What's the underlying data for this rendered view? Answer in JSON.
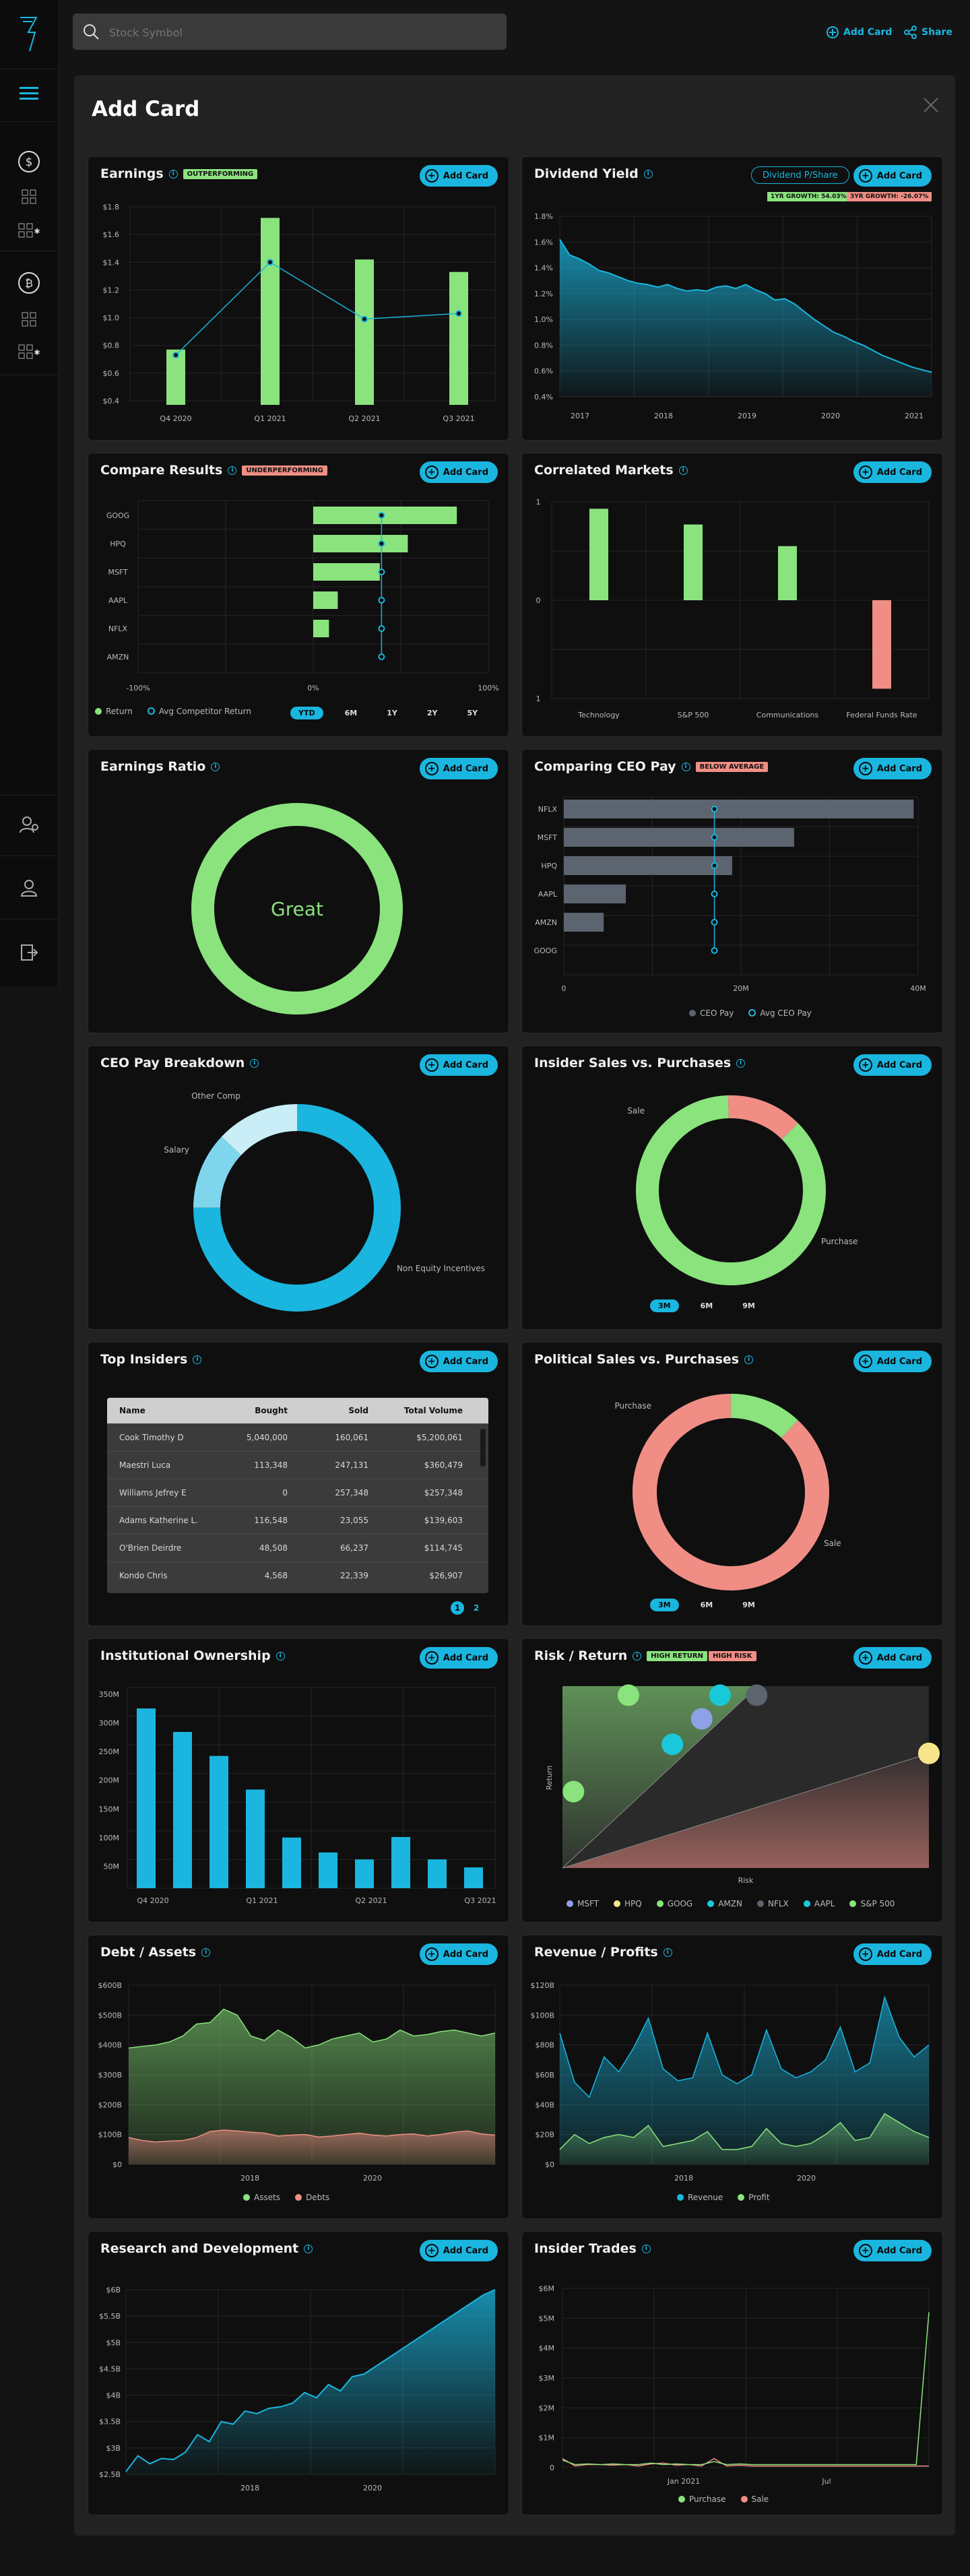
{
  "app": {
    "name": "Stock dashboard"
  },
  "search": {
    "placeholder": "Stock Symbol"
  },
  "topbar": {
    "add_card": "Add Card",
    "share": "Share"
  },
  "panel": {
    "title": "Add Card"
  },
  "add_label": "Add Card",
  "colors": {
    "accent": "#1ab6df",
    "green": "#8ae37d",
    "red": "#f08e85",
    "slate": "#5c6470",
    "lightblue": "#7fd6ec"
  },
  "cards": {
    "earnings": {
      "title": "Earnings",
      "badge": "OUTPERFORMING"
    },
    "dividend": {
      "title": "Dividend Yield",
      "toggle": "Dividend P/Share",
      "g1": "1YR GROWTH: 54.03%",
      "g2": "3YR GROWTH: -26.07%"
    },
    "compare": {
      "title": "Compare Results",
      "badge": "UNDERPERFORMING",
      "legend": [
        "Return",
        "Avg Competitor Return"
      ],
      "tabs": [
        "YTD",
        "6M",
        "1Y",
        "2Y",
        "5Y"
      ]
    },
    "correlated": {
      "title": "Correlated Markets"
    },
    "ratio": {
      "title": "Earnings Ratio",
      "center": "Great"
    },
    "ceopay": {
      "title": "Comparing CEO Pay",
      "badge": "BELOW AVERAGE",
      "legend": [
        "CEO Pay",
        "Avg CEO Pay"
      ]
    },
    "breakdown": {
      "title": "CEO Pay Breakdown"
    },
    "insider_sp": {
      "title": "Insider Sales vs. Purchases",
      "tabs": [
        "3M",
        "6M",
        "9M"
      ]
    },
    "top_insiders": {
      "title": "Top Insiders",
      "headers": [
        "Name",
        "Bought",
        "Sold",
        "Total Volume"
      ],
      "rows": [
        [
          "Cook Timothy D",
          "5,040,000",
          "160,061",
          "$5,200,061"
        ],
        [
          "Maestri Luca",
          "113,348",
          "247,131",
          "$360,479"
        ],
        [
          "Williams Jefrey E",
          "0",
          "257,348",
          "$257,348"
        ],
        [
          "Adams Katherine L.",
          "116,548",
          "23,055",
          "$139,603"
        ],
        [
          "O'Brien Deirdre",
          "48,508",
          "66,237",
          "$114,745"
        ],
        [
          "Kondo Chris",
          "4,568",
          "22,339",
          "$26,907"
        ]
      ],
      "pages": [
        "1",
        "2"
      ]
    },
    "political": {
      "title": "Political Sales vs. Purchases",
      "tabs": [
        "3M",
        "6M",
        "9M"
      ]
    },
    "institutional": {
      "title": "Institutional Ownership"
    },
    "risk": {
      "title": "Risk / Return",
      "badge1": "HIGH RETURN",
      "badge2": "HIGH RISK",
      "xlabel": "Risk",
      "ylabel": "Return"
    },
    "debt": {
      "title": "Debt / Assets"
    },
    "revenue": {
      "title": "Revenue / Profits"
    },
    "rnd": {
      "title": "Research and Development"
    },
    "trades": {
      "title": "Insider Trades"
    }
  },
  "chart_data": [
    {
      "id": "earnings",
      "type": "bar",
      "categories": [
        "Q4 2020",
        "Q1 2021",
        "Q2 2021",
        "Q3 2021"
      ],
      "values": [
        0.77,
        1.72,
        1.42,
        1.33
      ],
      "line": [
        0.73,
        1.4,
        0.99,
        1.03
      ],
      "yticks": [
        "$1.8",
        "$1.6",
        "$1.4",
        "$1.2",
        "$1.0",
        "$0.8",
        "$0.6",
        "$0.4"
      ],
      "ylim": [
        0.4,
        1.8
      ]
    },
    {
      "id": "dividend",
      "type": "area",
      "xticks": [
        "2017",
        "2018",
        "2019",
        "2020",
        "2021"
      ],
      "yticks": [
        "1.8%",
        "1.6%",
        "1.4%",
        "1.2%",
        "1.0%",
        "0.8%",
        "0.6%",
        "0.4%"
      ],
      "ylim": [
        0.4,
        1.8
      ],
      "values": [
        1.62,
        1.5,
        1.47,
        1.43,
        1.38,
        1.36,
        1.33,
        1.3,
        1.28,
        1.27,
        1.25,
        1.27,
        1.24,
        1.22,
        1.23,
        1.22,
        1.25,
        1.26,
        1.24,
        1.27,
        1.23,
        1.2,
        1.15,
        1.16,
        1.12,
        1.06,
        1.0,
        0.95,
        0.9,
        0.87,
        0.83,
        0.8,
        0.76,
        0.72,
        0.69,
        0.66,
        0.63,
        0.61,
        0.59
      ]
    },
    {
      "id": "compare",
      "type": "bar",
      "categories": [
        "GOOG",
        "HPQ",
        "MSFT",
        "AAPL",
        "NFLX",
        "AMZN"
      ],
      "values": [
        82,
        54,
        38,
        14,
        9,
        0
      ],
      "avg": [
        39,
        39,
        39,
        39,
        39,
        39
      ],
      "xticks": [
        "-100%",
        "0%",
        "100%"
      ],
      "xlim": [
        -100,
        100
      ]
    },
    {
      "id": "correlated",
      "type": "bar",
      "categories": [
        "Technology",
        "S&P 500",
        "Communications",
        "Federal Funds Rate"
      ],
      "values": [
        0.93,
        0.77,
        0.55,
        -0.9
      ],
      "yticks": [
        "1",
        "0",
        "1"
      ],
      "ylim": [
        -1,
        1
      ]
    },
    {
      "id": "ratio",
      "type": "pie",
      "values": [
        100
      ],
      "label": "Great"
    },
    {
      "id": "ceopay",
      "type": "bar",
      "categories": [
        "NFLX",
        "MSFT",
        "HPQ",
        "AAPL",
        "AMZN",
        "GOOG"
      ],
      "values": [
        39.5,
        26,
        19,
        7,
        4.5,
        0
      ],
      "avg": [
        17,
        17,
        17,
        17,
        17,
        17
      ],
      "xticks": [
        "0",
        "20M",
        "40M"
      ],
      "xlim": [
        0,
        40
      ]
    },
    {
      "id": "breakdown",
      "type": "pie",
      "labels": [
        "Non Equity Incentives",
        "Salary",
        "Other Comp"
      ],
      "values": [
        75,
        12,
        13
      ]
    },
    {
      "id": "insider_sp",
      "type": "pie",
      "labels": [
        "Purchase",
        "Sale"
      ],
      "values": [
        87,
        13
      ]
    },
    {
      "id": "political",
      "type": "pie",
      "labels": [
        "Sale",
        "Purchase"
      ],
      "values": [
        88,
        12
      ]
    },
    {
      "id": "institutional",
      "type": "bar",
      "categories": [
        "Q4 2020",
        "",
        "",
        "Q1 2021",
        "",
        "",
        "Q2 2021",
        "",
        "",
        "Q3 2021"
      ],
      "values": [
        337,
        293,
        248,
        185,
        95,
        67,
        54,
        96,
        54,
        39
      ],
      "yticks": [
        "350M",
        "300M",
        "250M",
        "200M",
        "150M",
        "100M",
        "50M"
      ],
      "ylim": [
        0,
        350
      ]
    },
    {
      "id": "risk",
      "type": "scatter",
      "series": [
        {
          "name": "MSFT",
          "color": "#8ea0e6",
          "x": 0.38,
          "y": 0.82
        },
        {
          "name": "HPQ",
          "color": "#f6e58a",
          "x": 1.0,
          "y": 0.63
        },
        {
          "name": "GOOG",
          "color": "#8ae37d",
          "x": 0.18,
          "y": 0.95
        },
        {
          "name": "AMZN",
          "color": "#1ac9d9",
          "x": 0.3,
          "y": 0.68
        },
        {
          "name": "NFLX",
          "color": "#5c6470",
          "x": 0.53,
          "y": 0.95
        },
        {
          "name": "AAPL",
          "color": "#1ac9d9",
          "x": 0.43,
          "y": 0.95
        },
        {
          "name": "S&P 500",
          "color": "#8ae37d",
          "x": 0.03,
          "y": 0.42
        }
      ]
    },
    {
      "id": "debt",
      "type": "area",
      "xticks": [
        "2018",
        "2020"
      ],
      "yticks": [
        "$600B",
        "$500B",
        "$400B",
        "$300B",
        "$200B",
        "$100B",
        "$0"
      ],
      "ylim": [
        0,
        600
      ],
      "series": [
        {
          "name": "Assets",
          "values": [
            390,
            395,
            400,
            410,
            430,
            470,
            475,
            520,
            500,
            430,
            415,
            450,
            425,
            390,
            400,
            420,
            430,
            440,
            410,
            420,
            450,
            430,
            435,
            445,
            450,
            440,
            430,
            440
          ]
        },
        {
          "name": "Debts",
          "values": [
            90,
            80,
            75,
            78,
            80,
            90,
            110,
            115,
            112,
            108,
            105,
            95,
            98,
            100,
            92,
            95,
            100,
            105,
            98,
            95,
            100,
            102,
            95,
            100,
            108,
            112,
            102,
            98
          ]
        }
      ]
    },
    {
      "id": "revenue",
      "type": "area",
      "xticks": [
        "2018",
        "2020"
      ],
      "yticks": [
        "$120B",
        "$100B",
        "$80B",
        "$60B",
        "$40B",
        "$20B",
        "$0"
      ],
      "ylim": [
        0,
        120
      ],
      "series": [
        {
          "name": "Revenue",
          "values": [
            88,
            55,
            45,
            72,
            62,
            78,
            98,
            64,
            56,
            58,
            88,
            60,
            54,
            60,
            90,
            64,
            58,
            62,
            70,
            92,
            62,
            68,
            112,
            85,
            72,
            80
          ]
        },
        {
          "name": "Profit",
          "values": [
            10,
            20,
            14,
            18,
            20,
            18,
            26,
            12,
            14,
            16,
            22,
            10,
            10,
            12,
            24,
            14,
            12,
            14,
            20,
            28,
            16,
            18,
            34,
            28,
            22,
            18
          ]
        }
      ]
    },
    {
      "id": "rnd",
      "type": "area",
      "xticks": [
        "2018",
        "2020"
      ],
      "yticks": [
        "$6B",
        "$5.5B",
        "$5B",
        "$4.5B",
        "$4B",
        "$3.5B",
        "$3B",
        "$2.5B"
      ],
      "ylim": [
        2.5,
        6
      ],
      "values": [
        2.55,
        2.85,
        2.7,
        2.8,
        2.78,
        2.92,
        3.25,
        3.12,
        3.5,
        3.45,
        3.7,
        3.65,
        3.75,
        3.78,
        3.85,
        4.05,
        3.95,
        4.2,
        4.08,
        4.35,
        4.4,
        4.55,
        4.7,
        4.85,
        5.0,
        5.15,
        5.3,
        5.45,
        5.6,
        5.75,
        5.9,
        6.0
      ]
    },
    {
      "id": "trades",
      "type": "line",
      "xticks": [
        "Jan 2021",
        "Jul"
      ],
      "yticks": [
        "$6M",
        "$5M",
        "$4M",
        "$3M",
        "$2M",
        "$1M",
        "0"
      ],
      "ylim": [
        0,
        6
      ],
      "series": [
        {
          "name": "Purchase",
          "values": [
            0.25,
            0.1,
            0.12,
            0.1,
            0.12,
            0.1,
            0.1,
            0.15,
            0.1,
            0.12,
            0.1,
            0.1,
            0.2,
            0.1,
            0.12,
            0.1,
            0.1,
            0.1,
            0.1,
            0.1,
            0.1,
            0.1,
            0.1,
            0.1,
            0.1,
            0.1,
            0.1,
            0.1,
            0.1,
            5.2
          ]
        },
        {
          "name": "Sale",
          "values": [
            0.3,
            0.05,
            0.1,
            0.1,
            0.08,
            0.1,
            0.05,
            0.12,
            0.15,
            0.08,
            0.1,
            0.05,
            0.3,
            0.05,
            0.08,
            0.05,
            0.05,
            0.05,
            0.05,
            0.05,
            0.05,
            0.05,
            0.05,
            0.05,
            0.05,
            0.05,
            0.05,
            0.05,
            0.05,
            0.05
          ]
        }
      ]
    }
  ]
}
